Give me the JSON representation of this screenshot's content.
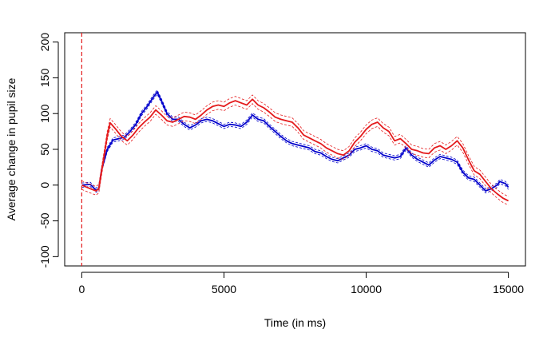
{
  "chart_data": {
    "type": "line",
    "title": "",
    "xlabel": "Time (in ms)",
    "ylabel": "Average change in pupil size",
    "xlim": [
      -600,
      15600
    ],
    "ylim": [
      -113,
      213
    ],
    "xticks": [
      0,
      5000,
      10000,
      15000
    ],
    "xtick_labels": [
      "0",
      "5000",
      "10000",
      "15000"
    ],
    "yticks": [
      -100,
      -50,
      0,
      50,
      100,
      150,
      200
    ],
    "ytick_labels": [
      "-100",
      "-50",
      "0",
      "50",
      "100",
      "150",
      "200"
    ],
    "grid": false,
    "legend": "none",
    "vline": {
      "x": 0,
      "color": "#e41a1c",
      "style": "dashed"
    },
    "series": [
      {
        "color": "#0000cc",
        "band": 3,
        "x": [
          0,
          300,
          500,
          600,
          700,
          900,
          1100,
          1300,
          1500,
          1700,
          1900,
          2100,
          2300,
          2500,
          2650,
          2800,
          3000,
          3200,
          3400,
          3600,
          3800,
          4000,
          4200,
          4400,
          4600,
          4800,
          5000,
          5200,
          5400,
          5600,
          5800,
          6000,
          6200,
          6400,
          6600,
          6800,
          7000,
          7200,
          7400,
          7600,
          7800,
          8000,
          8200,
          8400,
          8600,
          8800,
          9000,
          9200,
          9400,
          9600,
          9800,
          10000,
          10200,
          10400,
          10600,
          10800,
          11000,
          11200,
          11400,
          11600,
          11800,
          12000,
          12200,
          12400,
          12600,
          12800,
          13000,
          13200,
          13400,
          13600,
          13800,
          14000,
          14200,
          14400,
          14600,
          14700,
          14900,
          15000
        ],
        "values": [
          0,
          1,
          -7,
          -5,
          22,
          50,
          63,
          65,
          67,
          75,
          85,
          100,
          110,
          122,
          130,
          118,
          100,
          92,
          92,
          85,
          80,
          84,
          90,
          92,
          90,
          86,
          82,
          85,
          84,
          82,
          88,
          98,
          92,
          90,
          82,
          75,
          68,
          62,
          58,
          56,
          54,
          52,
          47,
          45,
          40,
          36,
          34,
          38,
          42,
          50,
          52,
          55,
          50,
          48,
          42,
          40,
          38,
          40,
          52,
          42,
          36,
          32,
          28,
          35,
          40,
          38,
          36,
          32,
          18,
          10,
          8,
          0,
          -8,
          -5,
          0,
          5,
          2,
          -3
        ]
      },
      {
        "color": "#e41a1c",
        "band": 6,
        "x": [
          0,
          300,
          500,
          600,
          700,
          800,
          900,
          1000,
          1200,
          1400,
          1600,
          1800,
          2000,
          2200,
          2400,
          2600,
          2800,
          3000,
          3200,
          3400,
          3600,
          3800,
          4000,
          4200,
          4400,
          4600,
          4800,
          5000,
          5200,
          5400,
          5600,
          5800,
          6000,
          6200,
          6400,
          6600,
          6800,
          7000,
          7200,
          7400,
          7600,
          7800,
          8000,
          8200,
          8400,
          8600,
          8800,
          9000,
          9200,
          9400,
          9600,
          9800,
          10000,
          10200,
          10400,
          10600,
          10800,
          11000,
          11200,
          11400,
          11600,
          11800,
          12000,
          12200,
          12400,
          12600,
          12800,
          13000,
          13200,
          13400,
          13600,
          13800,
          14000,
          14200,
          14400,
          14600,
          14800,
          15000
        ],
        "values": [
          0,
          -5,
          -8,
          -5,
          20,
          45,
          70,
          87,
          78,
          68,
          62,
          70,
          80,
          88,
          95,
          105,
          98,
          90,
          88,
          92,
          96,
          95,
          92,
          98,
          105,
          110,
          112,
          110,
          115,
          118,
          115,
          112,
          120,
          112,
          108,
          102,
          95,
          92,
          90,
          88,
          80,
          70,
          66,
          62,
          58,
          52,
          48,
          44,
          42,
          48,
          60,
          68,
          78,
          85,
          88,
          80,
          75,
          62,
          65,
          58,
          50,
          48,
          45,
          44,
          52,
          55,
          50,
          55,
          62,
          52,
          35,
          20,
          15,
          5,
          -5,
          -12,
          -18,
          -22
        ]
      }
    ]
  }
}
